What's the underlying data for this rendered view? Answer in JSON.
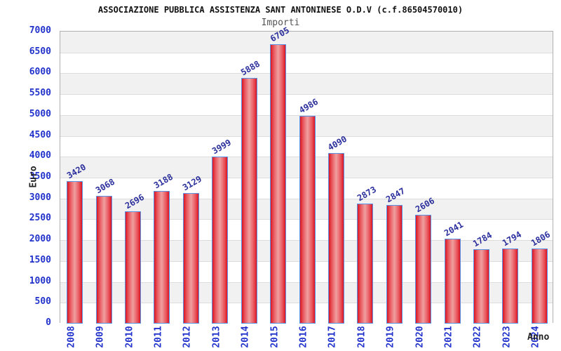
{
  "chart_data": {
    "type": "bar",
    "title": "ASSOCIAZIONE PUBBLICA ASSISTENZA SANT ANTONINESE O.D.V (c.f.86504570010)",
    "subtitle": "Importi",
    "xlabel": "Anno",
    "ylabel": "Euro",
    "categories": [
      "2008",
      "2009",
      "2010",
      "2011",
      "2012",
      "2013",
      "2014",
      "2015",
      "2016",
      "2017",
      "2018",
      "2019",
      "2020",
      "2021",
      "2022",
      "2023",
      "2024"
    ],
    "values": [
      3420,
      3068,
      2696,
      3188,
      3129,
      3999,
      5888,
      6705,
      4986,
      4090,
      2873,
      2847,
      2606,
      2041,
      1784,
      1794,
      1806
    ],
    "ylim": [
      0,
      7000
    ],
    "ytick_step": 500,
    "ytick_labels": [
      "0",
      "500",
      "1000",
      "1500",
      "2000",
      "2500",
      "3000",
      "3500",
      "4000",
      "4500",
      "5000",
      "5500",
      "6000",
      "6500",
      "7000"
    ],
    "grid": true,
    "legend": "none",
    "colors": {
      "bar_fill_edge": "#db1522",
      "bar_fill_center": "#efa0a0",
      "bar_border": "#5a93e6",
      "tick_label": "#2233cc",
      "value_label": "#2a2f9c",
      "band_gray": "#f1f1f1",
      "band_white": "#ffffff",
      "gridline": "#dcdcdc",
      "title": "#111111",
      "subtitle": "#555555"
    }
  }
}
